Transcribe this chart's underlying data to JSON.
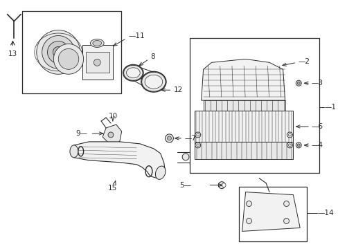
{
  "bg_color": "#ffffff",
  "line_color": "#2a2a2a",
  "figsize": [
    4.89,
    3.6
  ],
  "dpi": 100,
  "label_fs": 7.5,
  "lw_main": 0.8,
  "gray_fill": "#e8e8e8",
  "light_fill": "#f2f2f2"
}
